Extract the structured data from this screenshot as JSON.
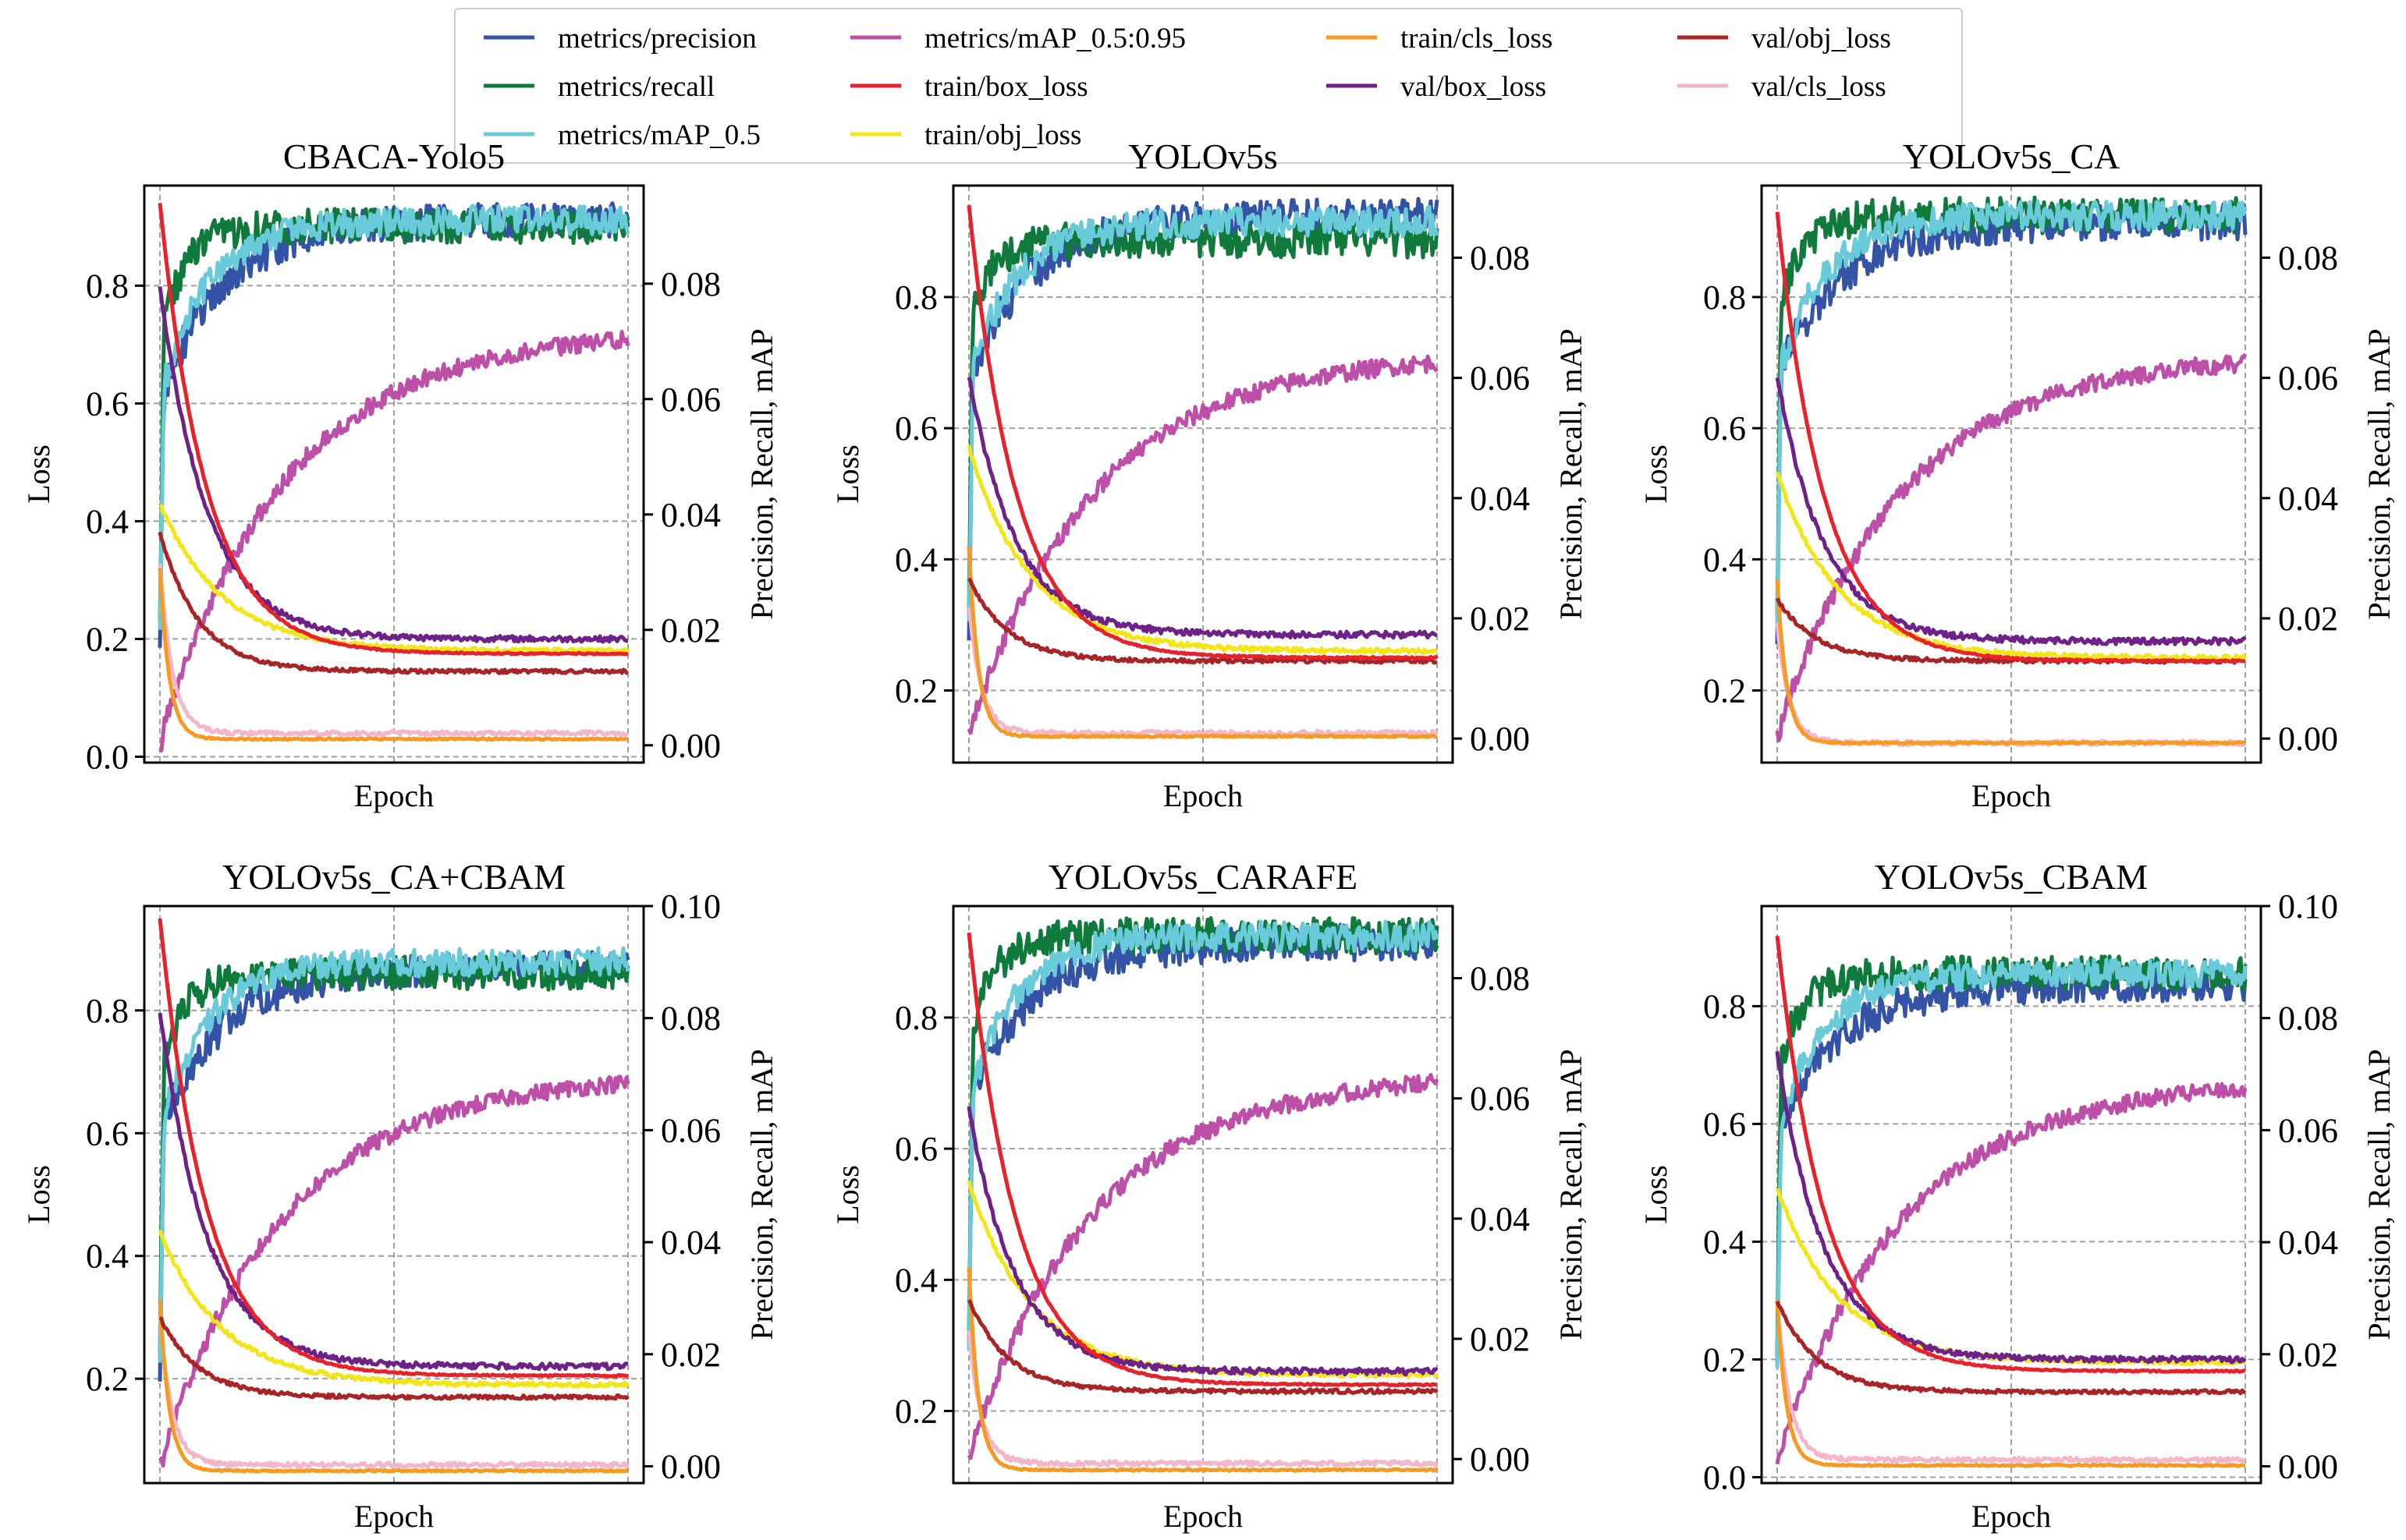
{
  "colors": {
    "metrics/precision": "#3553a6",
    "metrics/recall": "#0f7a3c",
    "metrics/mAP_0.5": "#69cbd9",
    "metrics/mAP_0.5:0.95": "#bd4fa8",
    "train/box_loss": "#e8222a",
    "train/obj_loss": "#f2e619",
    "train/cls_loss": "#f59a23",
    "val/box_loss": "#6e2288",
    "val/obj_loss": "#a82427",
    "val/cls_loss": "#f4b7c9"
  },
  "legend": [
    "metrics/precision",
    "metrics/recall",
    "metrics/mAP_0.5",
    "metrics/mAP_0.5:0.95",
    "train/box_loss",
    "train/obj_loss",
    "train/cls_loss",
    "val/box_loss",
    "val/obj_loss",
    "val/cls_loss"
  ],
  "chart_data": [
    {
      "type": "line",
      "title": "CBACA-Yolo5",
      "xlabel": "Epoch",
      "ylabel": "Loss",
      "y2label": "Precision, Recall, mAP",
      "x": [
        0,
        300
      ],
      "ylim": [
        -0.01,
        0.97
      ],
      "y2lim": [
        -0.003,
        0.097
      ],
      "yticks": [
        "0.0",
        "0.2",
        "0.4",
        "0.6",
        "0.8"
      ],
      "y2ticks": [
        "0.00",
        "0.02",
        "0.04",
        "0.06",
        "0.08"
      ],
      "grid": true,
      "loss_series": {
        "train/box_loss": {
          "start": 0.94,
          "peak": 0.94,
          "end": 0.175,
          "tau": 30
        },
        "train/obj_loss": {
          "start": 0.43,
          "peak": 0.43,
          "end": 0.18,
          "tau": 40
        },
        "train/cls_loss": {
          "start": 0.32,
          "peak": 0.32,
          "end": 0.03,
          "tau": 6
        },
        "val/box_loss": {
          "start": 0.8,
          "peak": 0.8,
          "end": 0.2,
          "tau": 30
        },
        "val/obj_loss": {
          "start": 0.38,
          "peak": 0.38,
          "end": 0.145,
          "tau": 25
        },
        "val/cls_loss": {
          "start": 0.33,
          "peak": 0.33,
          "end": 0.04,
          "tau": 8
        }
      },
      "metric_series": {
        "metrics/precision": {
          "start": 0.06,
          "end": 0.091,
          "tau": 40
        },
        "metrics/recall": {
          "start": 0.07,
          "end": 0.09,
          "tau": 15
        },
        "metrics/mAP_0.5": {
          "start": 0.06,
          "end": 0.091,
          "tau": 30
        },
        "metrics/mAP_0.5:0.95": {
          "start": 0.001,
          "end": 0.072,
          "tau": 80
        }
      }
    },
    {
      "type": "line",
      "title": "YOLOv5s",
      "xlabel": "Epoch",
      "ylabel": "Loss",
      "y2label": "Precision, Recall, mAP",
      "x": [
        0,
        300
      ],
      "ylim": [
        0.09,
        0.97
      ],
      "y2lim": [
        -0.004,
        0.092
      ],
      "yticks": [
        "0.2",
        "0.4",
        "0.6",
        "0.8"
      ],
      "y2ticks": [
        "0.00",
        "0.02",
        "0.04",
        "0.06",
        "0.08"
      ],
      "grid": true,
      "loss_series": {
        "train/box_loss": {
          "start": 0.94,
          "peak": 0.94,
          "end": 0.25,
          "tau": 30
        },
        "train/obj_loss": {
          "start": 0.57,
          "peak": 0.57,
          "end": 0.26,
          "tau": 40
        },
        "train/cls_loss": {
          "start": 0.42,
          "peak": 0.42,
          "end": 0.13,
          "tau": 6
        },
        "val/box_loss": {
          "start": 0.68,
          "peak": 0.68,
          "end": 0.285,
          "tau": 30
        },
        "val/obj_loss": {
          "start": 0.37,
          "peak": 0.37,
          "end": 0.245,
          "tau": 25
        },
        "val/cls_loss": {
          "start": 0.33,
          "peak": 0.33,
          "end": 0.135,
          "tau": 8
        }
      },
      "metric_series": {
        "metrics/precision": {
          "start": 0.06,
          "end": 0.087,
          "tau": 40
        },
        "metrics/recall": {
          "start": 0.07,
          "end": 0.083,
          "tau": 15
        },
        "metrics/mAP_0.5": {
          "start": 0.06,
          "end": 0.086,
          "tau": 30
        },
        "metrics/mAP_0.5:0.95": {
          "start": 0.001,
          "end": 0.064,
          "tau": 80
        }
      }
    },
    {
      "type": "line",
      "title": "YOLOv5s_CA",
      "xlabel": "Epoch",
      "ylabel": "Loss",
      "y2label": "Precision, Recall, mAP",
      "x": [
        0,
        300
      ],
      "ylim": [
        0.09,
        0.97
      ],
      "y2lim": [
        -0.004,
        0.092
      ],
      "yticks": [
        "0.2",
        "0.4",
        "0.6",
        "0.8"
      ],
      "y2ticks": [
        "0.00",
        "0.02",
        "0.04",
        "0.06",
        "0.08"
      ],
      "grid": true,
      "loss_series": {
        "train/box_loss": {
          "start": 0.93,
          "peak": 0.93,
          "end": 0.245,
          "tau": 30
        },
        "train/obj_loss": {
          "start": 0.53,
          "peak": 0.53,
          "end": 0.25,
          "tau": 40
        },
        "train/cls_loss": {
          "start": 0.37,
          "peak": 0.37,
          "end": 0.12,
          "tau": 6
        },
        "val/box_loss": {
          "start": 0.68,
          "peak": 0.68,
          "end": 0.275,
          "tau": 30
        },
        "val/obj_loss": {
          "start": 0.34,
          "peak": 0.34,
          "end": 0.245,
          "tau": 25
        },
        "val/cls_loss": {
          "start": 0.3,
          "peak": 0.3,
          "end": 0.12,
          "tau": 8
        }
      },
      "metric_series": {
        "metrics/precision": {
          "start": 0.06,
          "end": 0.086,
          "tau": 40
        },
        "metrics/recall": {
          "start": 0.07,
          "end": 0.087,
          "tau": 15
        },
        "metrics/mAP_0.5": {
          "start": 0.06,
          "end": 0.087,
          "tau": 30
        },
        "metrics/mAP_0.5:0.95": {
          "start": 0.001,
          "end": 0.064,
          "tau": 80
        }
      }
    },
    {
      "type": "line",
      "title": "YOLOv5s_CA+CBAM",
      "xlabel": "Epoch",
      "ylabel": "Loss",
      "y2label": "Precision, Recall, mAP",
      "x": [
        0,
        300
      ],
      "ylim": [
        0.03,
        0.97
      ],
      "y2lim": [
        -0.003,
        0.1
      ],
      "yticks": [
        "0.2",
        "0.4",
        "0.6",
        "0.8"
      ],
      "y2ticks": [
        "0.00",
        "0.02",
        "0.04",
        "0.06",
        "0.08",
        "0.10"
      ],
      "grid": true,
      "loss_series": {
        "train/box_loss": {
          "start": 0.95,
          "peak": 0.95,
          "end": 0.205,
          "tau": 30
        },
        "train/obj_loss": {
          "start": 0.44,
          "peak": 0.44,
          "end": 0.19,
          "tau": 40
        },
        "train/cls_loss": {
          "start": 0.33,
          "peak": 0.33,
          "end": 0.05,
          "tau": 6
        },
        "val/box_loss": {
          "start": 0.8,
          "peak": 0.8,
          "end": 0.22,
          "tau": 30
        },
        "val/obj_loss": {
          "start": 0.3,
          "peak": 0.3,
          "end": 0.17,
          "tau": 25
        },
        "val/cls_loss": {
          "start": 0.3,
          "peak": 0.3,
          "end": 0.06,
          "tau": 8
        }
      },
      "metric_series": {
        "metrics/precision": {
          "start": 0.06,
          "end": 0.089,
          "tau": 40
        },
        "metrics/recall": {
          "start": 0.07,
          "end": 0.088,
          "tau": 15
        },
        "metrics/mAP_0.5": {
          "start": 0.06,
          "end": 0.09,
          "tau": 30
        },
        "metrics/mAP_0.5:0.95": {
          "start": 0.001,
          "end": 0.07,
          "tau": 80
        }
      }
    },
    {
      "type": "line",
      "title": "YOLOv5s_CARAFE",
      "xlabel": "Epoch",
      "ylabel": "Loss",
      "y2label": "Precision, Recall, mAP",
      "x": [
        0,
        300
      ],
      "ylim": [
        0.09,
        0.97
      ],
      "y2lim": [
        -0.004,
        0.092
      ],
      "yticks": [
        "0.2",
        "0.4",
        "0.6",
        "0.8"
      ],
      "y2ticks": [
        "0.00",
        "0.02",
        "0.04",
        "0.06",
        "0.08"
      ],
      "grid": true,
      "loss_series": {
        "train/box_loss": {
          "start": 0.93,
          "peak": 0.93,
          "end": 0.24,
          "tau": 30
        },
        "train/obj_loss": {
          "start": 0.55,
          "peak": 0.55,
          "end": 0.255,
          "tau": 40
        },
        "train/cls_loss": {
          "start": 0.42,
          "peak": 0.42,
          "end": 0.11,
          "tau": 6
        },
        "val/box_loss": {
          "start": 0.66,
          "peak": 0.66,
          "end": 0.26,
          "tau": 30
        },
        "val/obj_loss": {
          "start": 0.37,
          "peak": 0.37,
          "end": 0.23,
          "tau": 25
        },
        "val/cls_loss": {
          "start": 0.32,
          "peak": 0.32,
          "end": 0.12,
          "tau": 8
        }
      },
      "metric_series": {
        "metrics/precision": {
          "start": 0.06,
          "end": 0.086,
          "tau": 40
        },
        "metrics/recall": {
          "start": 0.07,
          "end": 0.087,
          "tau": 15
        },
        "metrics/mAP_0.5": {
          "start": 0.06,
          "end": 0.087,
          "tau": 30
        },
        "metrics/mAP_0.5:0.95": {
          "start": 0.001,
          "end": 0.064,
          "tau": 80
        }
      }
    },
    {
      "type": "line",
      "title": "YOLOv5s_CBAM",
      "xlabel": "Epoch",
      "ylabel": "Loss",
      "y2label": "Precision, Recall, mAP",
      "x": [
        0,
        300
      ],
      "ylim": [
        -0.01,
        0.97
      ],
      "y2lim": [
        -0.003,
        0.1
      ],
      "yticks": [
        "0.0",
        "0.2",
        "0.4",
        "0.6",
        "0.8"
      ],
      "y2ticks": [
        "0.00",
        "0.02",
        "0.04",
        "0.06",
        "0.08",
        "0.10"
      ],
      "grid": true,
      "loss_series": {
        "train/box_loss": {
          "start": 0.92,
          "peak": 0.92,
          "end": 0.18,
          "tau": 30
        },
        "train/obj_loss": {
          "start": 0.49,
          "peak": 0.49,
          "end": 0.195,
          "tau": 40
        },
        "train/cls_loss": {
          "start": 0.3,
          "peak": 0.3,
          "end": 0.02,
          "tau": 6
        },
        "val/box_loss": {
          "start": 0.72,
          "peak": 0.72,
          "end": 0.2,
          "tau": 30
        },
        "val/obj_loss": {
          "start": 0.3,
          "peak": 0.3,
          "end": 0.145,
          "tau": 25
        },
        "val/cls_loss": {
          "start": 0.3,
          "peak": 0.3,
          "end": 0.03,
          "tau": 8
        }
      },
      "metric_series": {
        "metrics/precision": {
          "start": 0.06,
          "end": 0.086,
          "tau": 40
        },
        "metrics/recall": {
          "start": 0.07,
          "end": 0.088,
          "tau": 15
        },
        "metrics/mAP_0.5": {
          "start": 0.06,
          "end": 0.088,
          "tau": 30
        },
        "metrics/mAP_0.5:0.95": {
          "start": 0.001,
          "end": 0.069,
          "tau": 80
        }
      }
    }
  ]
}
